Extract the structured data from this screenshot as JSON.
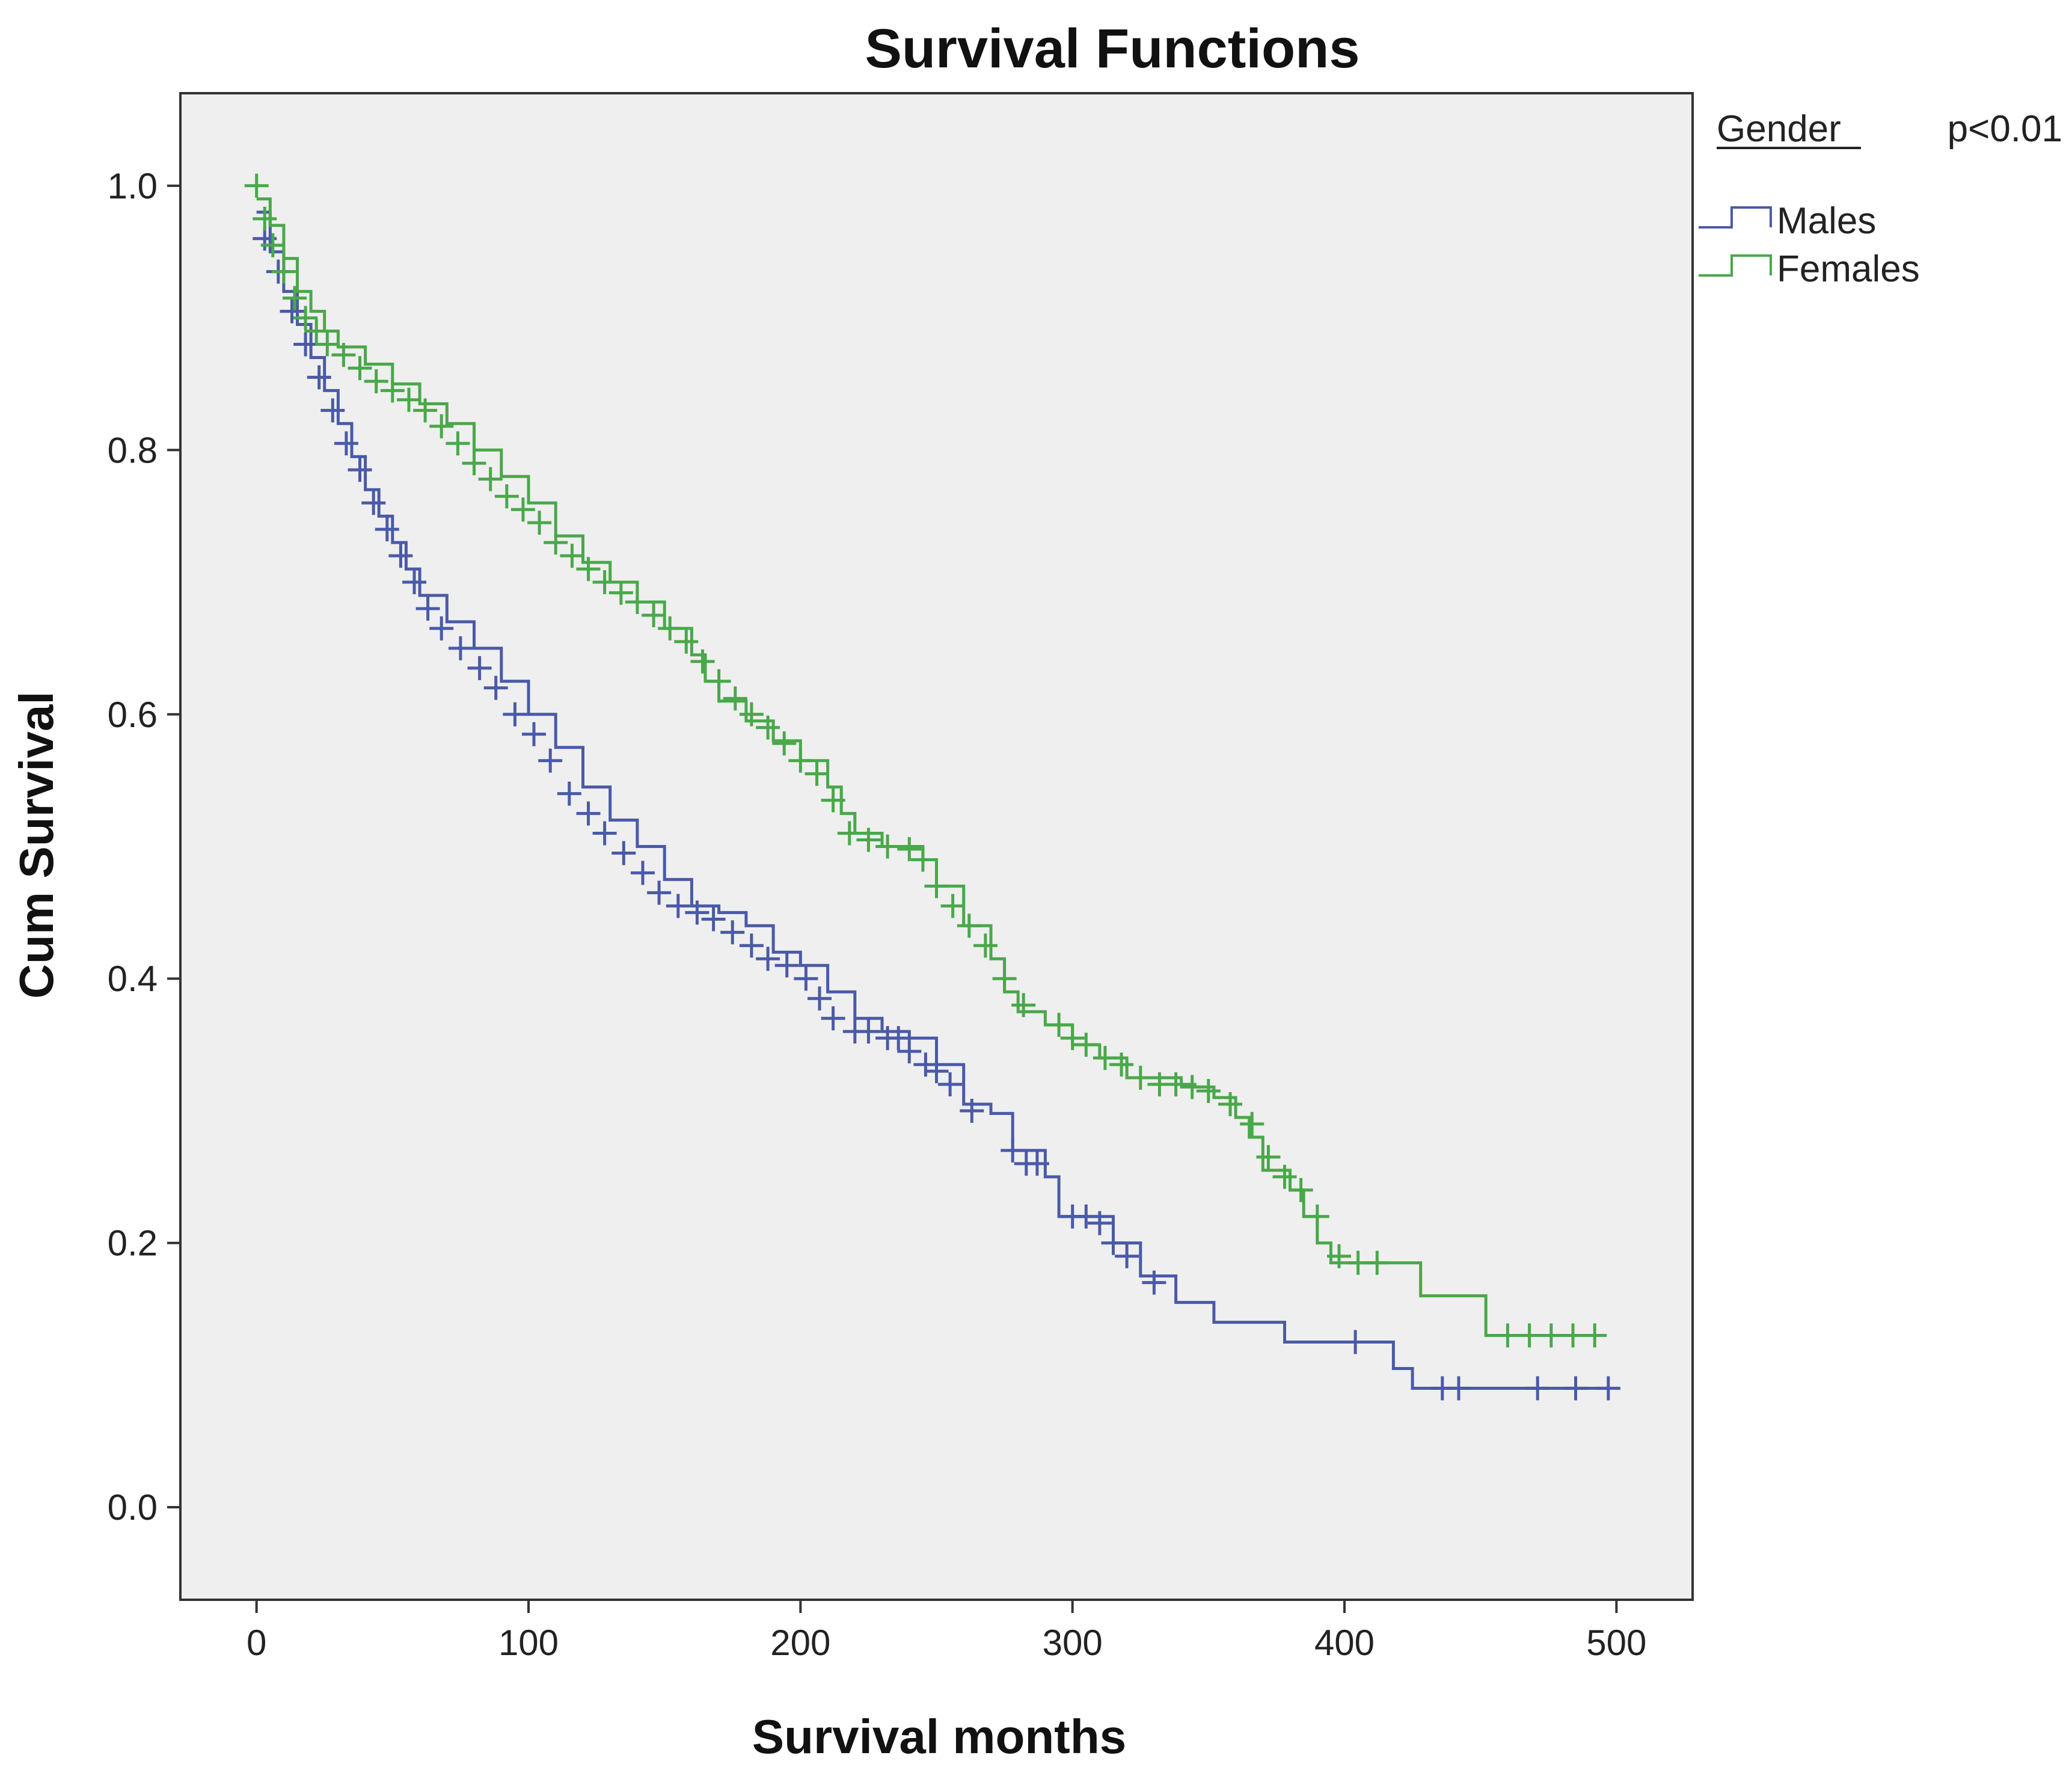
{
  "chart_data": {
    "type": "line",
    "title": "Survival Functions",
    "xlabel": "Survival months",
    "ylabel": "Cum Survival",
    "xlim": [
      -28,
      528
    ],
    "ylim": [
      -0.07,
      1.07
    ],
    "x_ticks": [
      0,
      100,
      200,
      300,
      400,
      500
    ],
    "x_tick_labels": [
      "0",
      "100",
      "200",
      "300",
      "400",
      "500"
    ],
    "y_ticks": [
      0.0,
      0.2,
      0.4,
      0.6,
      0.8,
      1.0
    ],
    "y_tick_labels": [
      "0.0",
      "0.2",
      "0.4",
      "0.6",
      "0.8",
      "1.0"
    ],
    "grid": false,
    "legend": {
      "title": "Gender",
      "annotation": "p<0.01",
      "placement": "outside-top-right"
    },
    "series": [
      {
        "name": "Males",
        "color": "#4a5aa8",
        "points": [
          [
            0,
            0.98
          ],
          [
            5,
            0.95
          ],
          [
            10,
            0.92
          ],
          [
            15,
            0.895
          ],
          [
            20,
            0.87
          ],
          [
            25,
            0.845
          ],
          [
            30,
            0.82
          ],
          [
            35,
            0.795
          ],
          [
            40,
            0.77
          ],
          [
            45,
            0.75
          ],
          [
            50,
            0.73
          ],
          [
            55,
            0.71
          ],
          [
            60,
            0.69
          ],
          [
            70,
            0.67
          ],
          [
            80,
            0.65
          ],
          [
            90,
            0.625
          ],
          [
            100,
            0.6
          ],
          [
            110,
            0.575
          ],
          [
            120,
            0.545
          ],
          [
            130,
            0.52
          ],
          [
            140,
            0.5
          ],
          [
            150,
            0.475
          ],
          [
            160,
            0.455
          ],
          [
            170,
            0.45
          ],
          [
            180,
            0.44
          ],
          [
            190,
            0.42
          ],
          [
            200,
            0.41
          ],
          [
            210,
            0.39
          ],
          [
            220,
            0.37
          ],
          [
            230,
            0.36
          ],
          [
            240,
            0.355
          ],
          [
            250,
            0.335
          ],
          [
            260,
            0.305
          ],
          [
            270,
            0.298
          ],
          [
            278,
            0.27
          ],
          [
            290,
            0.25
          ],
          [
            295,
            0.22
          ],
          [
            305,
            0.22
          ],
          [
            315,
            0.2
          ],
          [
            325,
            0.175
          ],
          [
            335,
            0.175
          ],
          [
            338,
            0.155
          ],
          [
            350,
            0.155
          ],
          [
            352,
            0.14
          ],
          [
            377,
            0.14
          ],
          [
            378,
            0.125
          ],
          [
            417,
            0.125
          ],
          [
            418,
            0.105
          ],
          [
            422,
            0.105
          ],
          [
            425,
            0.09
          ],
          [
            497,
            0.09
          ]
        ],
        "censor_x": [
          3,
          8,
          13,
          18,
          23,
          28,
          33,
          38,
          43,
          48,
          53,
          58,
          63,
          68,
          75,
          82,
          88,
          95,
          102,
          108,
          115,
          122,
          128,
          135,
          142,
          148,
          155,
          162,
          168,
          175,
          182,
          188,
          195,
          202,
          207,
          212,
          220,
          225,
          232,
          236,
          240,
          246,
          250,
          255,
          263,
          278,
          283,
          287,
          300,
          305,
          310,
          315,
          320,
          330,
          404,
          436,
          442,
          471,
          485,
          497
        ],
        "censor_y": [
          0.96,
          0.935,
          0.905,
          0.88,
          0.855,
          0.83,
          0.805,
          0.785,
          0.76,
          0.74,
          0.72,
          0.7,
          0.68,
          0.665,
          0.65,
          0.635,
          0.62,
          0.6,
          0.585,
          0.565,
          0.54,
          0.525,
          0.51,
          0.495,
          0.48,
          0.465,
          0.455,
          0.45,
          0.445,
          0.435,
          0.425,
          0.415,
          0.41,
          0.4,
          0.385,
          0.37,
          0.36,
          0.36,
          0.355,
          0.355,
          0.345,
          0.335,
          0.33,
          0.32,
          0.3,
          0.27,
          0.26,
          0.26,
          0.22,
          0.22,
          0.215,
          0.2,
          0.19,
          0.17,
          0.125,
          0.09,
          0.09,
          0.09,
          0.09,
          0.09
        ]
      },
      {
        "name": "Females",
        "color": "#49a84a",
        "points": [
          [
            0,
            0.99
          ],
          [
            5,
            0.97
          ],
          [
            10,
            0.945
          ],
          [
            15,
            0.92
          ],
          [
            20,
            0.905
          ],
          [
            25,
            0.89
          ],
          [
            30,
            0.878
          ],
          [
            40,
            0.865
          ],
          [
            50,
            0.85
          ],
          [
            60,
            0.835
          ],
          [
            70,
            0.82
          ],
          [
            80,
            0.8
          ],
          [
            90,
            0.78
          ],
          [
            100,
            0.76
          ],
          [
            110,
            0.735
          ],
          [
            120,
            0.715
          ],
          [
            130,
            0.7
          ],
          [
            140,
            0.685
          ],
          [
            150,
            0.665
          ],
          [
            160,
            0.645
          ],
          [
            165,
            0.625
          ],
          [
            170,
            0.61
          ],
          [
            180,
            0.595
          ],
          [
            190,
            0.58
          ],
          [
            200,
            0.565
          ],
          [
            210,
            0.545
          ],
          [
            215,
            0.525
          ],
          [
            220,
            0.51
          ],
          [
            230,
            0.5
          ],
          [
            240,
            0.5
          ],
          [
            245,
            0.49
          ],
          [
            250,
            0.47
          ],
          [
            260,
            0.44
          ],
          [
            270,
            0.415
          ],
          [
            275,
            0.39
          ],
          [
            280,
            0.375
          ],
          [
            290,
            0.365
          ],
          [
            300,
            0.35
          ],
          [
            310,
            0.34
          ],
          [
            320,
            0.325
          ],
          [
            340,
            0.32
          ],
          [
            345,
            0.318
          ],
          [
            352,
            0.31
          ],
          [
            360,
            0.295
          ],
          [
            365,
            0.28
          ],
          [
            370,
            0.255
          ],
          [
            380,
            0.24
          ],
          [
            385,
            0.22
          ],
          [
            390,
            0.2
          ],
          [
            395,
            0.185
          ],
          [
            427,
            0.185
          ],
          [
            428,
            0.16
          ],
          [
            450,
            0.16
          ],
          [
            452,
            0.13
          ],
          [
            492,
            0.13
          ]
        ],
        "censor_x": [
          0,
          3,
          6,
          10,
          14,
          18,
          22,
          26,
          32,
          38,
          44,
          50,
          56,
          62,
          68,
          74,
          80,
          86,
          92,
          98,
          104,
          110,
          116,
          122,
          128,
          134,
          140,
          146,
          152,
          158,
          164,
          170,
          176,
          182,
          188,
          194,
          200,
          206,
          212,
          218,
          225,
          232,
          240,
          245,
          250,
          256,
          262,
          268,
          275,
          282,
          295,
          300,
          305,
          312,
          318,
          325,
          332,
          338,
          344,
          350,
          358,
          366,
          372,
          378,
          384,
          390,
          398,
          405,
          412,
          460,
          468,
          476,
          484,
          492
        ],
        "censor_y": [
          1.0,
          0.975,
          0.955,
          0.935,
          0.915,
          0.9,
          0.89,
          0.88,
          0.872,
          0.862,
          0.852,
          0.845,
          0.838,
          0.83,
          0.818,
          0.805,
          0.79,
          0.778,
          0.765,
          0.755,
          0.745,
          0.73,
          0.72,
          0.71,
          0.7,
          0.692,
          0.685,
          0.675,
          0.665,
          0.655,
          0.64,
          0.625,
          0.612,
          0.6,
          0.59,
          0.578,
          0.565,
          0.555,
          0.535,
          0.51,
          0.505,
          0.5,
          0.498,
          0.49,
          0.47,
          0.455,
          0.44,
          0.425,
          0.4,
          0.38,
          0.365,
          0.355,
          0.35,
          0.34,
          0.335,
          0.325,
          0.32,
          0.32,
          0.318,
          0.315,
          0.305,
          0.29,
          0.265,
          0.25,
          0.24,
          0.22,
          0.19,
          0.185,
          0.185,
          0.13,
          0.13,
          0.13,
          0.13,
          0.13
        ]
      }
    ]
  }
}
